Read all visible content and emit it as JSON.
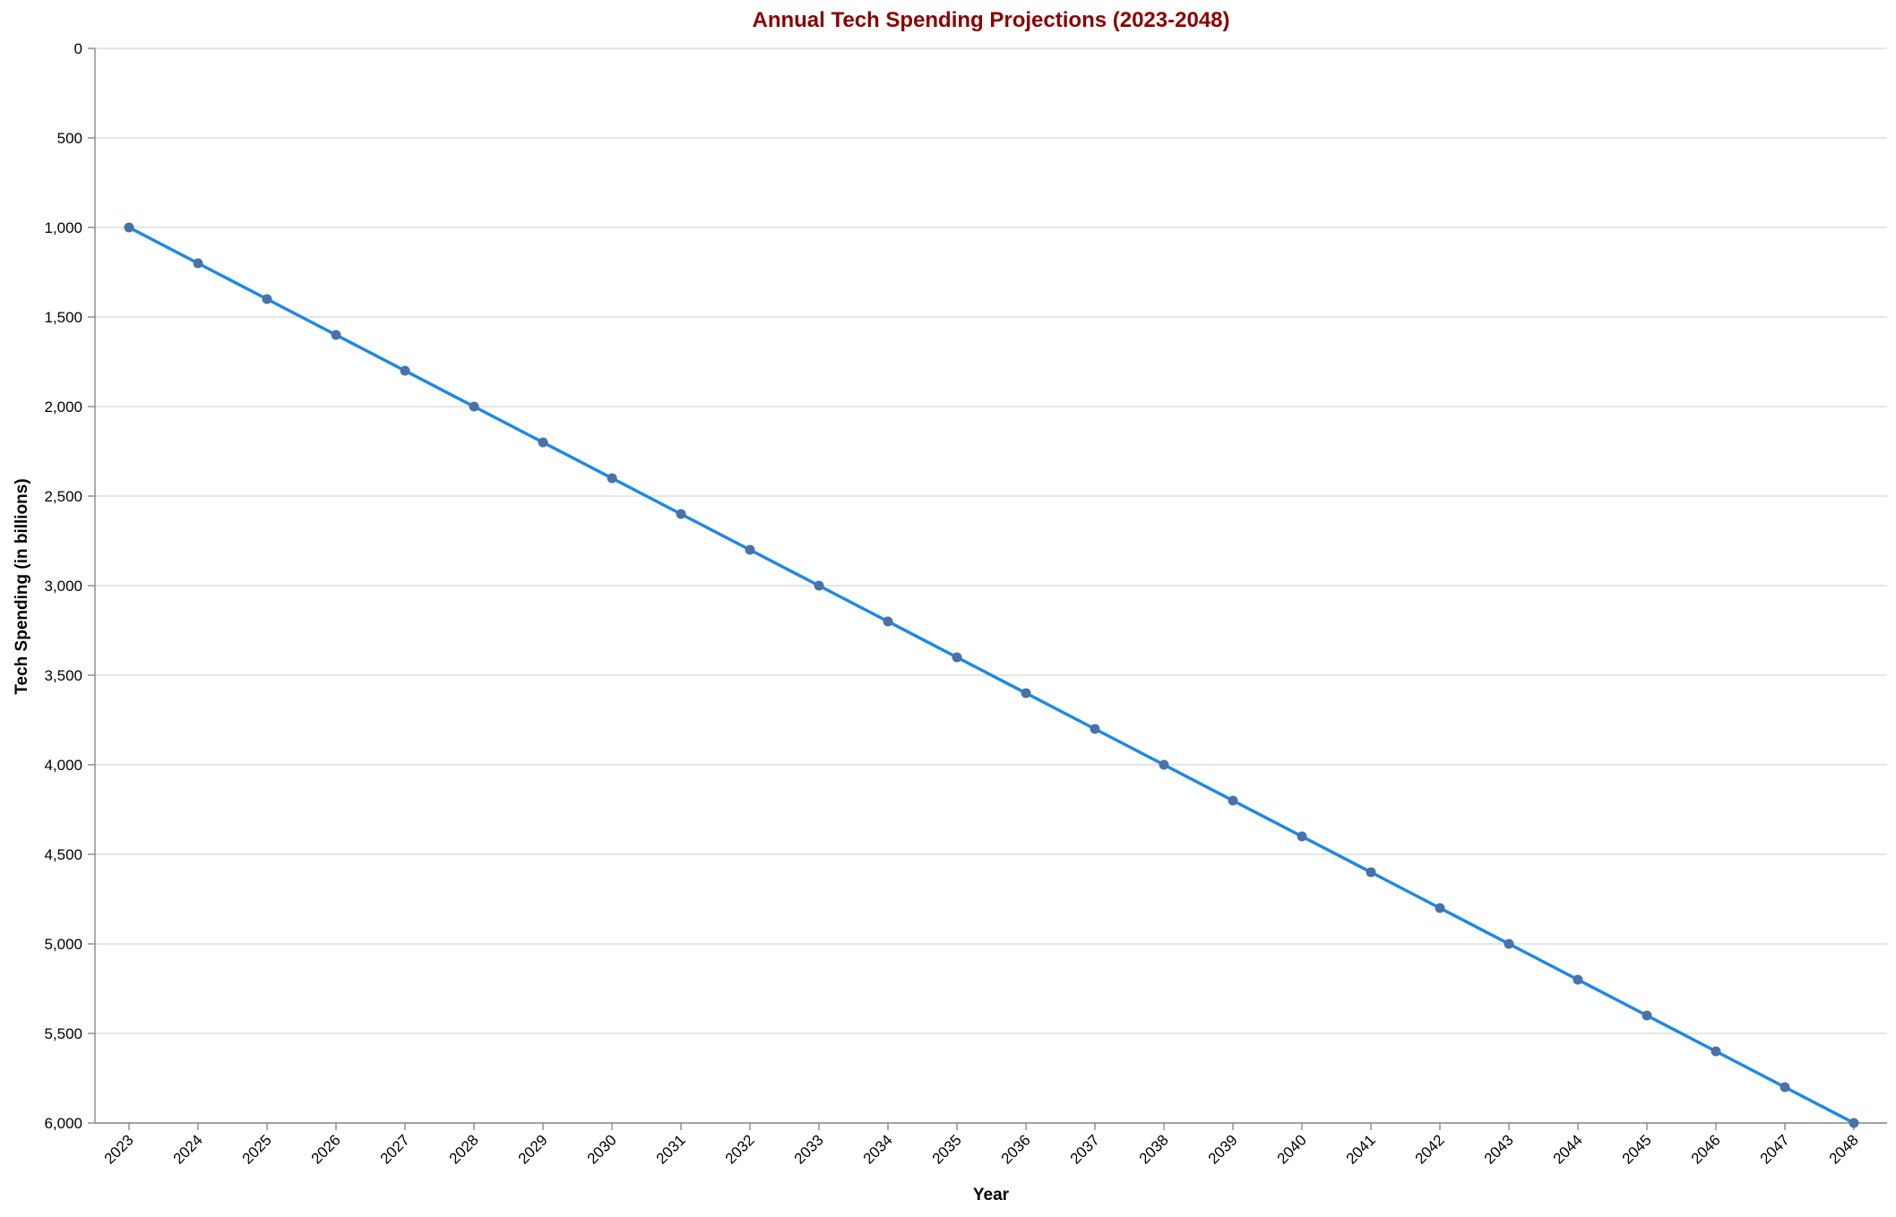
{
  "colors": {
    "title": "#8b0000",
    "line": "#1e88e5",
    "point": "#4a72a8",
    "grid": "#dddddd",
    "axis": "#888888"
  },
  "chart_data": {
    "type": "line",
    "title": "Annual Tech Spending Projections (2023-2048)",
    "xlabel": "Year",
    "ylabel": "Tech Spending (in billions)",
    "y_reversed": true,
    "ylim": [
      0,
      6000
    ],
    "yticks": [
      "0",
      "500",
      "1,000",
      "1,500",
      "2,000",
      "2,500",
      "3,000",
      "3,500",
      "4,000",
      "4,500",
      "5,000",
      "5,500",
      "6,000"
    ],
    "grid": true,
    "x": [
      "2023",
      "2024",
      "2025",
      "2026",
      "2027",
      "2028",
      "2029",
      "2030",
      "2031",
      "2032",
      "2033",
      "2034",
      "2035",
      "2036",
      "2037",
      "2038",
      "2039",
      "2040",
      "2041",
      "2042",
      "2043",
      "2044",
      "2045",
      "2046",
      "2047",
      "2048"
    ],
    "series": [
      {
        "values": [
          1000,
          1200,
          1400,
          1600,
          1800,
          2000,
          2200,
          2400,
          2600,
          2800,
          3000,
          3200,
          3400,
          3600,
          3800,
          4000,
          4200,
          4400,
          4600,
          4800,
          5000,
          5200,
          5400,
          5600,
          5800,
          6000
        ]
      }
    ]
  }
}
